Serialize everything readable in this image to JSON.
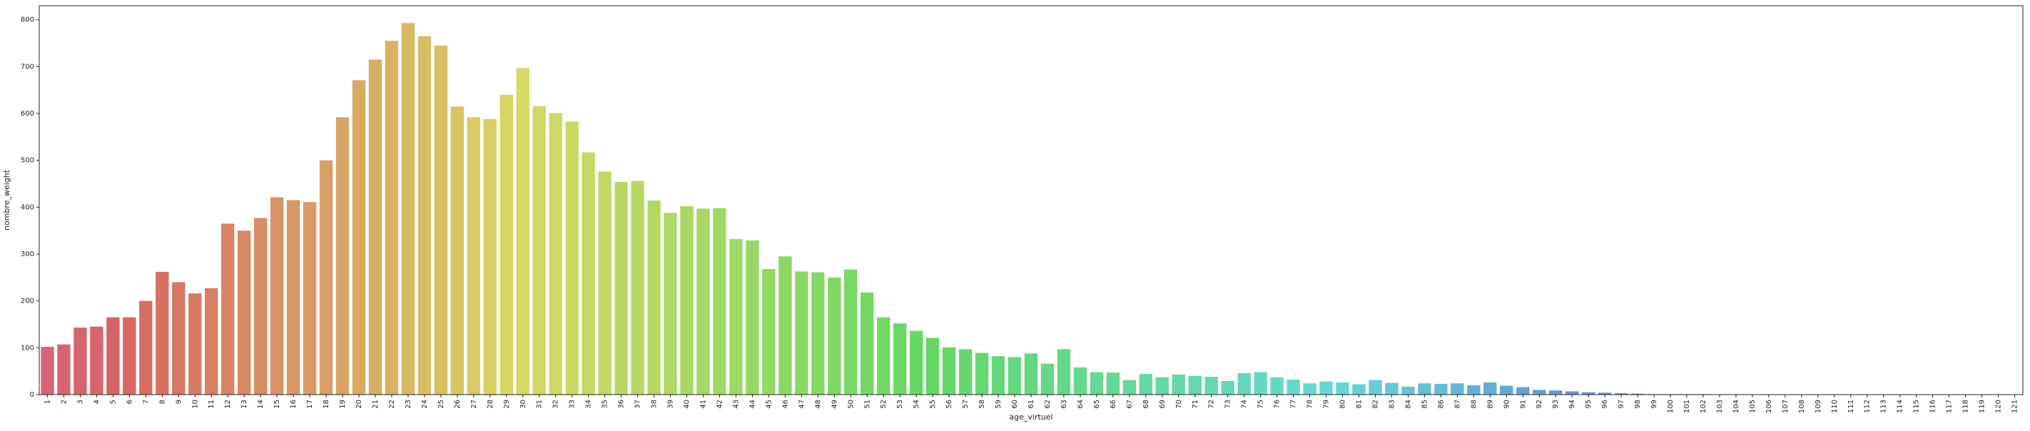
{
  "chart_data": {
    "type": "bar",
    "xlabel": "age_virtuel",
    "ylabel": "nombre_weight",
    "ylim": [
      0,
      830
    ],
    "yticks": [
      0,
      100,
      200,
      300,
      400,
      500,
      600,
      700,
      800
    ],
    "grid": false,
    "palette": "husl (hue gradient from pink through orange, olive, green, teal, blue to violet)",
    "categories": [
      "1",
      "2",
      "3",
      "4",
      "5",
      "6",
      "7",
      "8",
      "9",
      "10",
      "11",
      "12",
      "13",
      "14",
      "15",
      "16",
      "17",
      "18",
      "19",
      "20",
      "21",
      "22",
      "23",
      "24",
      "25",
      "26",
      "27",
      "28",
      "29",
      "30",
      "31",
      "32",
      "33",
      "34",
      "35",
      "36",
      "37",
      "38",
      "39",
      "40",
      "41",
      "42",
      "43",
      "44",
      "45",
      "46",
      "47",
      "48",
      "49",
      "50",
      "51",
      "52",
      "53",
      "54",
      "55",
      "56",
      "57",
      "58",
      "59",
      "60",
      "61",
      "62",
      "63",
      "64",
      "65",
      "66",
      "67",
      "68",
      "69",
      "70",
      "71",
      "72",
      "73",
      "74",
      "75",
      "76",
      "77",
      "78",
      "79",
      "80",
      "81",
      "82",
      "83",
      "84",
      "85",
      "86",
      "87",
      "88",
      "89",
      "90",
      "91",
      "92",
      "93",
      "94",
      "95",
      "96",
      "97",
      "98",
      "99",
      "100",
      "101",
      "102",
      "103",
      "104",
      "105",
      "106",
      "107",
      "108",
      "109",
      "110",
      "111",
      "112",
      "113",
      "114",
      "115",
      "116",
      "117",
      "118",
      "119",
      "120",
      "121"
    ],
    "values": [
      102,
      107,
      143,
      145,
      165,
      165,
      200,
      262,
      240,
      216,
      227,
      365,
      350,
      377,
      421,
      415,
      411,
      500,
      592,
      671,
      715,
      755,
      793,
      765,
      745,
      615,
      592,
      588,
      640,
      697,
      616,
      601,
      583,
      517,
      476,
      454,
      456,
      414,
      388,
      402,
      397,
      398,
      332,
      329,
      268,
      295,
      263,
      261,
      250,
      267,
      218,
      165,
      152,
      136,
      121,
      101,
      97,
      89,
      82,
      80,
      88,
      66,
      97,
      58,
      48,
      47,
      31,
      44,
      37,
      43,
      40,
      38,
      29,
      46,
      48,
      37,
      32,
      24,
      28,
      26,
      22,
      31,
      25,
      17,
      24,
      23,
      24,
      20,
      26,
      19,
      16,
      10,
      9,
      7,
      5,
      4,
      3,
      2,
      1,
      1,
      1,
      1,
      0,
      0,
      0,
      0,
      0,
      0,
      0,
      0,
      0,
      0,
      0,
      0,
      0,
      0,
      0,
      0,
      0,
      0,
      0
    ]
  }
}
